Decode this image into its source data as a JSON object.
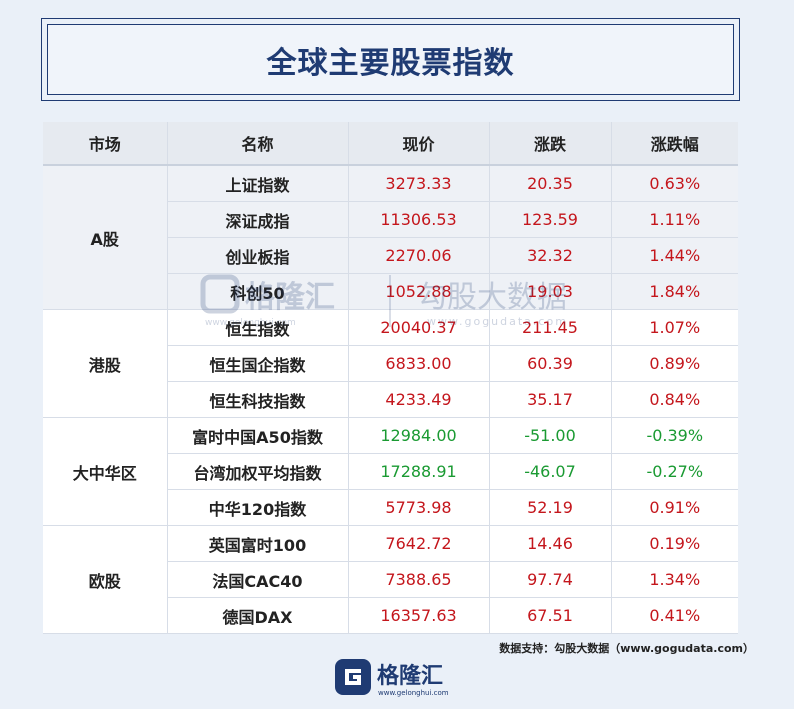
{
  "title": "全球主要股票指数",
  "headers": [
    "市场",
    "名称",
    "现价",
    "涨跌",
    "涨跌幅"
  ],
  "groups": [
    {
      "market": "A股",
      "rows": [
        {
          "name": "上证指数",
          "price": "3273.33",
          "change": "20.35",
          "pct": "0.63%"
        },
        {
          "name": "深证成指",
          "price": "11306.53",
          "change": "123.59",
          "pct": "1.11%"
        },
        {
          "name": "创业板指",
          "price": "2270.06",
          "change": "32.32",
          "pct": "1.44%"
        },
        {
          "name": "科创50",
          "price": "1052.88",
          "change": "19.03",
          "pct": "1.84%"
        }
      ]
    },
    {
      "market": "港股",
      "rows": [
        {
          "name": "恒生指数",
          "price": "20040.37",
          "change": "211.45",
          "pct": "1.07%"
        },
        {
          "name": "恒生国企指数",
          "price": "6833.00",
          "change": "60.39",
          "pct": "0.89%"
        },
        {
          "name": "恒生科技指数",
          "price": "4233.49",
          "change": "35.17",
          "pct": "0.84%"
        }
      ]
    },
    {
      "market": "大中华区",
      "rows": [
        {
          "name": "富时中国A50指数",
          "price": "12984.00",
          "change": "-51.00",
          "pct": "-0.39%"
        },
        {
          "name": "台湾加权平均指数",
          "price": "17288.91",
          "change": "-46.07",
          "pct": "-0.27%"
        },
        {
          "name": "中华120指数",
          "price": "5773.98",
          "change": "52.19",
          "pct": "0.91%"
        }
      ]
    },
    {
      "market": "欧股",
      "rows": [
        {
          "name": "英国富时100",
          "price": "7642.72",
          "change": "14.46",
          "pct": "0.19%"
        },
        {
          "name": "法国CAC40",
          "price": "7388.65",
          "change": "97.74",
          "pct": "1.34%"
        },
        {
          "name": "德国DAX",
          "price": "16357.63",
          "change": "67.51",
          "pct": "0.41%"
        }
      ]
    }
  ],
  "watermark": {
    "brand": "格隆汇",
    "brand_url": "www.gelonghui.com",
    "secondary": "勾股大数据",
    "secondary_url": "www.gogudata.com"
  },
  "source": "数据支持：勾股大数据（www.gogudata.com）",
  "logo": {
    "text": "格隆汇",
    "url": "www.gelonghui.com"
  },
  "colors": {
    "up": "#c4161c",
    "down": "#1a9a32",
    "title": "#1f3b73"
  }
}
